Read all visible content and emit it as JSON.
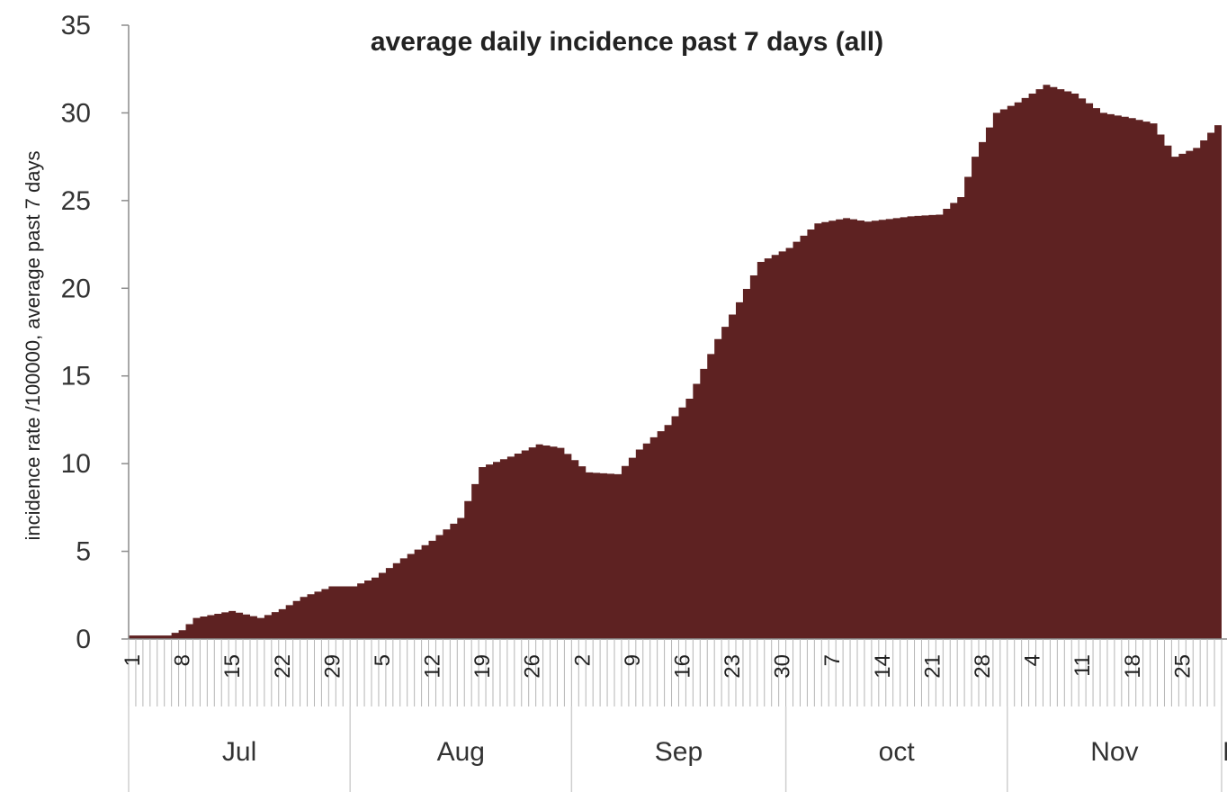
{
  "chart_data": {
    "type": "area",
    "title": "average daily incidence past 7 days (all)",
    "ylabel": "incidence rate /100000, average past 7 days",
    "ylim": [
      0,
      35
    ],
    "yticks": [
      "0",
      "5",
      "10",
      "15",
      "20",
      "25",
      "30",
      "35"
    ],
    "color": "#5e2222",
    "x_start": "Jul 1",
    "x_end": "Dec 1",
    "xtick_labels": [
      "1",
      "8",
      "15",
      "22",
      "29",
      "5",
      "12",
      "19",
      "26",
      "2",
      "9",
      "16",
      "23",
      "30",
      "7",
      "14",
      "21",
      "28",
      "4",
      "11",
      "18",
      "25"
    ],
    "months": [
      "Jul",
      "Aug",
      "Sep",
      "oct",
      "Nov",
      "D"
    ],
    "series": [
      {
        "points": [
          [
            "Jul 1",
            0.2
          ],
          [
            "Jul 6",
            0.2
          ],
          [
            "Jul 8",
            0.5
          ],
          [
            "Jul 10",
            1.2
          ],
          [
            "Jul 15",
            1.6
          ],
          [
            "Jul 19",
            1.2
          ],
          [
            "Jul 22",
            1.7
          ],
          [
            "Jul 25",
            2.4
          ],
          [
            "Jul 29",
            3.0
          ],
          [
            "Aug 1",
            3.0
          ],
          [
            "Aug 4",
            3.5
          ],
          [
            "Aug 8",
            4.6
          ],
          [
            "Aug 12",
            5.6
          ],
          [
            "Aug 16",
            6.9
          ],
          [
            "Aug 19",
            9.8
          ],
          [
            "Aug 23",
            10.4
          ],
          [
            "Aug 27",
            11.1
          ],
          [
            "Aug 30",
            10.9
          ],
          [
            "Sep 3",
            9.5
          ],
          [
            "Sep 7",
            9.4
          ],
          [
            "Sep 10",
            10.8
          ],
          [
            "Sep 14",
            12.2
          ],
          [
            "Sep 17",
            13.7
          ],
          [
            "Sep 21",
            17.1
          ],
          [
            "Sep 24",
            19.2
          ],
          [
            "Sep 27",
            21.5
          ],
          [
            "Oct 1",
            22.3
          ],
          [
            "Oct 5",
            23.7
          ],
          [
            "Oct 9",
            24.0
          ],
          [
            "Oct 12",
            23.8
          ],
          [
            "Oct 18",
            24.1
          ],
          [
            "Oct 22",
            24.2
          ],
          [
            "Oct 25",
            25.2
          ],
          [
            "Oct 27",
            27.5
          ],
          [
            "Oct 30",
            30.0
          ],
          [
            "Nov 2",
            30.6
          ],
          [
            "Nov 6",
            31.6
          ],
          [
            "Nov 10",
            31.1
          ],
          [
            "Nov 14",
            30.0
          ],
          [
            "Nov 18",
            29.7
          ],
          [
            "Nov 21",
            29.4
          ],
          [
            "Nov 24",
            27.5
          ],
          [
            "Nov 27",
            28.0
          ],
          [
            "Nov 30",
            29.3
          ]
        ]
      }
    ]
  }
}
